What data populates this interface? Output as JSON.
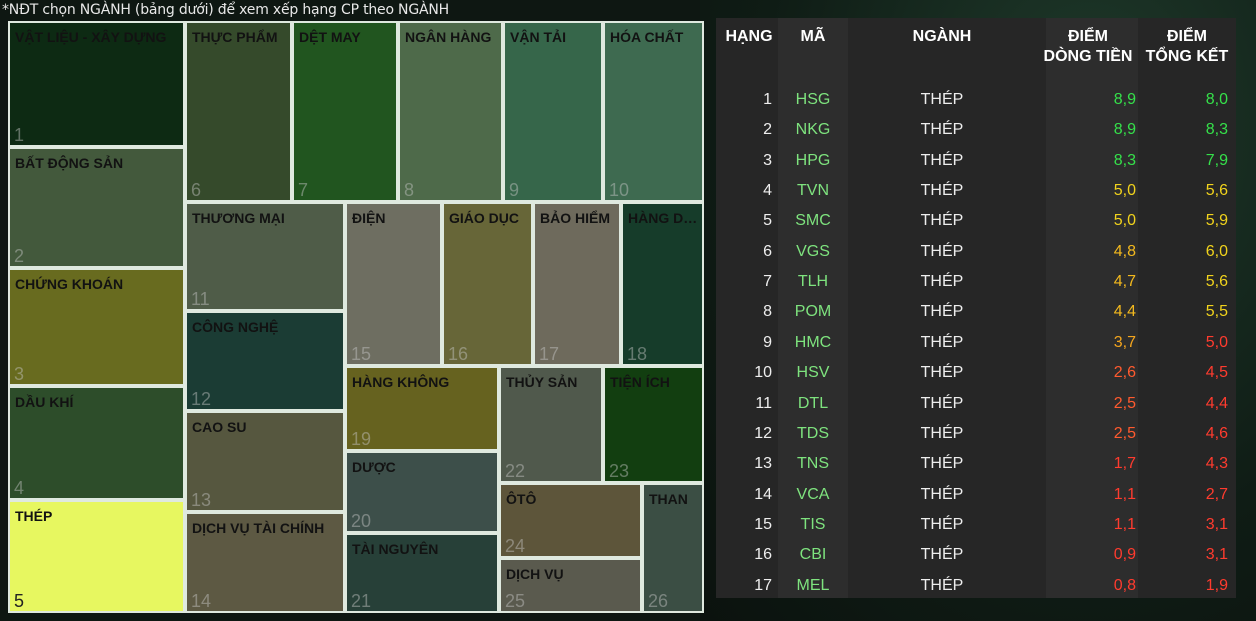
{
  "note": "*NĐT chọn NGÀNH (bảng dưới) để xem xếp hạng CP theo NGÀNH",
  "colors": {
    "green": "#35e04a",
    "yellow": "#f1d31c",
    "orange": "#f3a51e",
    "red": "#ff3b2e",
    "code": "#7ee37e"
  },
  "treemap": [
    {
      "name": "VẬT LIỆU - XÂY DỰNG",
      "num": "1",
      "color": "#0d2a13"
    },
    {
      "name": "BẤT ĐỘNG SẢN",
      "num": "2",
      "color": "#43593c"
    },
    {
      "name": "CHỨNG KHOÁN",
      "num": "3",
      "color": "#686b1f"
    },
    {
      "name": "DẦU KHÍ",
      "num": "4",
      "color": "#2d4d2a"
    },
    {
      "name": "THÉP",
      "num": "5",
      "color": "#e7f760"
    },
    {
      "name": "THỰC PHẨM",
      "num": "6",
      "color": "#354a2b"
    },
    {
      "name": "DỆT MAY",
      "num": "7",
      "color": "#21551f"
    },
    {
      "name": "NGÂN HÀNG",
      "num": "8",
      "color": "#4e6a4a"
    },
    {
      "name": "VẬN TẢI",
      "num": "9",
      "color": "#36664a"
    },
    {
      "name": "HÓA CHẤT",
      "num": "10",
      "color": "#3e6a50"
    },
    {
      "name": "THƯƠNG MẠI",
      "num": "11",
      "color": "#4f5c48"
    },
    {
      "name": "CÔNG NGHỆ",
      "num": "12",
      "color": "#1b3c34"
    },
    {
      "name": "CAO SU",
      "num": "13",
      "color": "#56573f"
    },
    {
      "name": "DỊCH VỤ TÀI CHÍNH",
      "num": "14",
      "color": "#5d5943"
    },
    {
      "name": "ĐIỆN",
      "num": "15",
      "color": "#6e6e61"
    },
    {
      "name": "GIÁO DỤC",
      "num": "16",
      "color": "#676638"
    },
    {
      "name": "BẢO HIỂM",
      "num": "17",
      "color": "#6e6a5c"
    },
    {
      "name": "HÀNG DỊ...",
      "num": "18",
      "color": "#163c2a"
    },
    {
      "name": "HÀNG KHÔNG",
      "num": "19",
      "color": "#66621f"
    },
    {
      "name": "DƯỢC",
      "num": "20",
      "color": "#3d4f4a"
    },
    {
      "name": "TÀI NGUYÊN",
      "num": "21",
      "color": "#274038"
    },
    {
      "name": "THỦY SẢN",
      "num": "22",
      "color": "#50594c"
    },
    {
      "name": "TIỆN ÍCH",
      "num": "23",
      "color": "#123e10"
    },
    {
      "name": "ÔTÔ",
      "num": "24",
      "color": "#5d553a"
    },
    {
      "name": "DỊCH VỤ",
      "num": "25",
      "color": "#5a5a4e"
    },
    {
      "name": "THAN",
      "num": "26",
      "color": "#3b4e44"
    }
  ],
  "table": {
    "headers": {
      "rank": "HẠNG",
      "code": "MÃ",
      "industry": "NGÀNH",
      "flow_1": "ĐIỂM",
      "flow_2": "DÒNG TIỀN",
      "total_1": "ĐIỂM",
      "total_2": "TỔNG KẾT"
    },
    "rows": [
      {
        "rank": "1",
        "code": "HSG",
        "industry": "THÉP",
        "flow": "8,9",
        "flow_color": "#35e04a",
        "total": "8,0",
        "total_color": "#35e04a"
      },
      {
        "rank": "2",
        "code": "NKG",
        "industry": "THÉP",
        "flow": "8,9",
        "flow_color": "#35e04a",
        "total": "8,3",
        "total_color": "#35e04a"
      },
      {
        "rank": "3",
        "code": "HPG",
        "industry": "THÉP",
        "flow": "8,3",
        "flow_color": "#35e04a",
        "total": "7,9",
        "total_color": "#35e04a"
      },
      {
        "rank": "4",
        "code": "TVN",
        "industry": "THÉP",
        "flow": "5,0",
        "flow_color": "#f1d31c",
        "total": "5,6",
        "total_color": "#f1d31c"
      },
      {
        "rank": "5",
        "code": "SMC",
        "industry": "THÉP",
        "flow": "5,0",
        "flow_color": "#f1d31c",
        "total": "5,9",
        "total_color": "#f1d31c"
      },
      {
        "rank": "6",
        "code": "VGS",
        "industry": "THÉP",
        "flow": "4,8",
        "flow_color": "#f3b91e",
        "total": "6,0",
        "total_color": "#f1d31c"
      },
      {
        "rank": "7",
        "code": "TLH",
        "industry": "THÉP",
        "flow": "4,7",
        "flow_color": "#f3b91e",
        "total": "5,6",
        "total_color": "#f1d31c"
      },
      {
        "rank": "8",
        "code": "POM",
        "industry": "THÉP",
        "flow": "4,4",
        "flow_color": "#f3b91e",
        "total": "5,5",
        "total_color": "#f1d31c"
      },
      {
        "rank": "9",
        "code": "HMC",
        "industry": "THÉP",
        "flow": "3,7",
        "flow_color": "#f3a51e",
        "total": "5,0",
        "total_color": "#ff3b2e"
      },
      {
        "rank": "10",
        "code": "HSV",
        "industry": "THÉP",
        "flow": "2,6",
        "flow_color": "#ff5a2e",
        "total": "4,5",
        "total_color": "#ff3b2e"
      },
      {
        "rank": "11",
        "code": "DTL",
        "industry": "THÉP",
        "flow": "2,5",
        "flow_color": "#ff5a2e",
        "total": "4,4",
        "total_color": "#ff3b2e"
      },
      {
        "rank": "12",
        "code": "TDS",
        "industry": "THÉP",
        "flow": "2,5",
        "flow_color": "#ff5a2e",
        "total": "4,6",
        "total_color": "#ff3b2e"
      },
      {
        "rank": "13",
        "code": "TNS",
        "industry": "THÉP",
        "flow": "1,7",
        "flow_color": "#ff3b2e",
        "total": "4,3",
        "total_color": "#ff3b2e"
      },
      {
        "rank": "14",
        "code": "VCA",
        "industry": "THÉP",
        "flow": "1,1",
        "flow_color": "#ff3b2e",
        "total": "2,7",
        "total_color": "#ff3b2e"
      },
      {
        "rank": "15",
        "code": "TIS",
        "industry": "THÉP",
        "flow": "1,1",
        "flow_color": "#ff3b2e",
        "total": "3,1",
        "total_color": "#ff3b2e"
      },
      {
        "rank": "16",
        "code": "CBI",
        "industry": "THÉP",
        "flow": "0,9",
        "flow_color": "#ff3b2e",
        "total": "3,1",
        "total_color": "#ff3b2e"
      },
      {
        "rank": "17",
        "code": "MEL",
        "industry": "THÉP",
        "flow": "0,8",
        "flow_color": "#ff3b2e",
        "total": "1,9",
        "total_color": "#ff3b2e"
      }
    ]
  }
}
